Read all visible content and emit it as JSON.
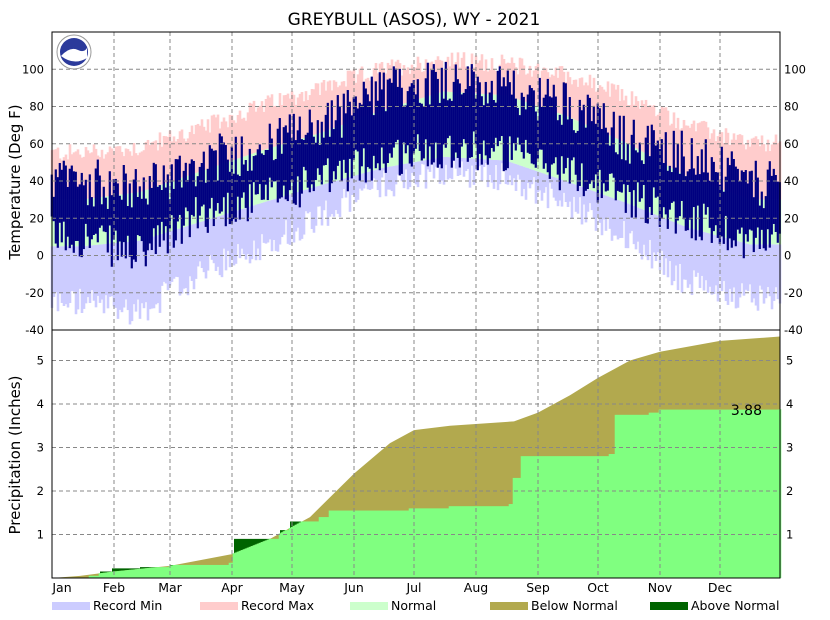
{
  "chart_data": {
    "type": "area",
    "title": "GREYBULL (ASOS), WY - 2021",
    "months": [
      "Jan",
      "Feb",
      "Mar",
      "Apr",
      "May",
      "Jun",
      "Jul",
      "Aug",
      "Sep",
      "Oct",
      "Nov",
      "Dec"
    ],
    "colors": {
      "record_min": "#ccccff",
      "record_max": "#ffcccc",
      "normal": "#ccffcc",
      "observed": "#000080",
      "below_normal": "#b2a94e",
      "above_normal": "#006400",
      "observed_precip": "#80ff80"
    },
    "legend": [
      "Record Min",
      "Record Max",
      "Normal",
      "Below Normal",
      "Above Normal"
    ],
    "temperature": {
      "ylabel": "Temperature (Deg F)",
      "ylim": [
        -40,
        120
      ],
      "ticks": [
        "-40",
        "-20",
        "0",
        "20",
        "40",
        "60",
        "80",
        "100"
      ],
      "grid": true,
      "record_max_monthly": [
        55,
        58,
        68,
        80,
        90,
        100,
        105,
        103,
        97,
        85,
        70,
        60
      ],
      "record_min_monthly": [
        -25,
        -30,
        -10,
        5,
        22,
        38,
        45,
        42,
        28,
        10,
        -15,
        -22
      ],
      "normal_high_monthly": [
        30,
        34,
        45,
        56,
        66,
        78,
        88,
        86,
        75,
        60,
        42,
        30
      ],
      "normal_low_monthly": [
        5,
        8,
        18,
        28,
        38,
        47,
        53,
        51,
        40,
        28,
        15,
        6
      ],
      "observed_high_monthly": [
        40,
        35,
        50,
        58,
        70,
        88,
        95,
        88,
        82,
        62,
        55,
        38
      ],
      "observed_low_monthly": [
        10,
        0,
        22,
        30,
        40,
        52,
        58,
        55,
        45,
        32,
        20,
        8
      ]
    },
    "precipitation": {
      "ylabel": "Precipitation (Inches)",
      "ylim": [
        0,
        5.7
      ],
      "ticks": [
        "1",
        "2",
        "3",
        "4",
        "5"
      ],
      "grid": true,
      "normal_cumulative": [
        [
          1,
          0
        ],
        [
          15,
          0.05
        ],
        [
          32,
          0.15
        ],
        [
          60,
          0.28
        ],
        [
          91,
          0.55
        ],
        [
          110,
          0.9
        ],
        [
          130,
          1.4
        ],
        [
          152,
          2.4
        ],
        [
          170,
          3.1
        ],
        [
          182,
          3.4
        ],
        [
          200,
          3.5
        ],
        [
          232,
          3.6
        ],
        [
          244,
          3.8
        ],
        [
          260,
          4.2
        ],
        [
          274,
          4.6
        ],
        [
          290,
          5.0
        ],
        [
          305,
          5.2
        ],
        [
          335,
          5.45
        ],
        [
          365,
          5.55
        ]
      ],
      "observed_cumulative": [
        [
          1,
          0
        ],
        [
          20,
          0.05
        ],
        [
          25,
          0.15
        ],
        [
          31,
          0.22
        ],
        [
          45,
          0.25
        ],
        [
          60,
          0.3
        ],
        [
          90,
          0.35
        ],
        [
          92,
          0.9
        ],
        [
          115,
          1.1
        ],
        [
          120,
          1.3
        ],
        [
          135,
          1.4
        ],
        [
          140,
          1.55
        ],
        [
          180,
          1.6
        ],
        [
          200,
          1.65
        ],
        [
          230,
          1.7
        ],
        [
          232,
          2.3
        ],
        [
          236,
          2.8
        ],
        [
          280,
          2.85
        ],
        [
          283,
          3.75
        ],
        [
          300,
          3.8
        ],
        [
          305,
          3.87
        ],
        [
          365,
          3.88
        ]
      ],
      "total_label": "3.88"
    }
  }
}
